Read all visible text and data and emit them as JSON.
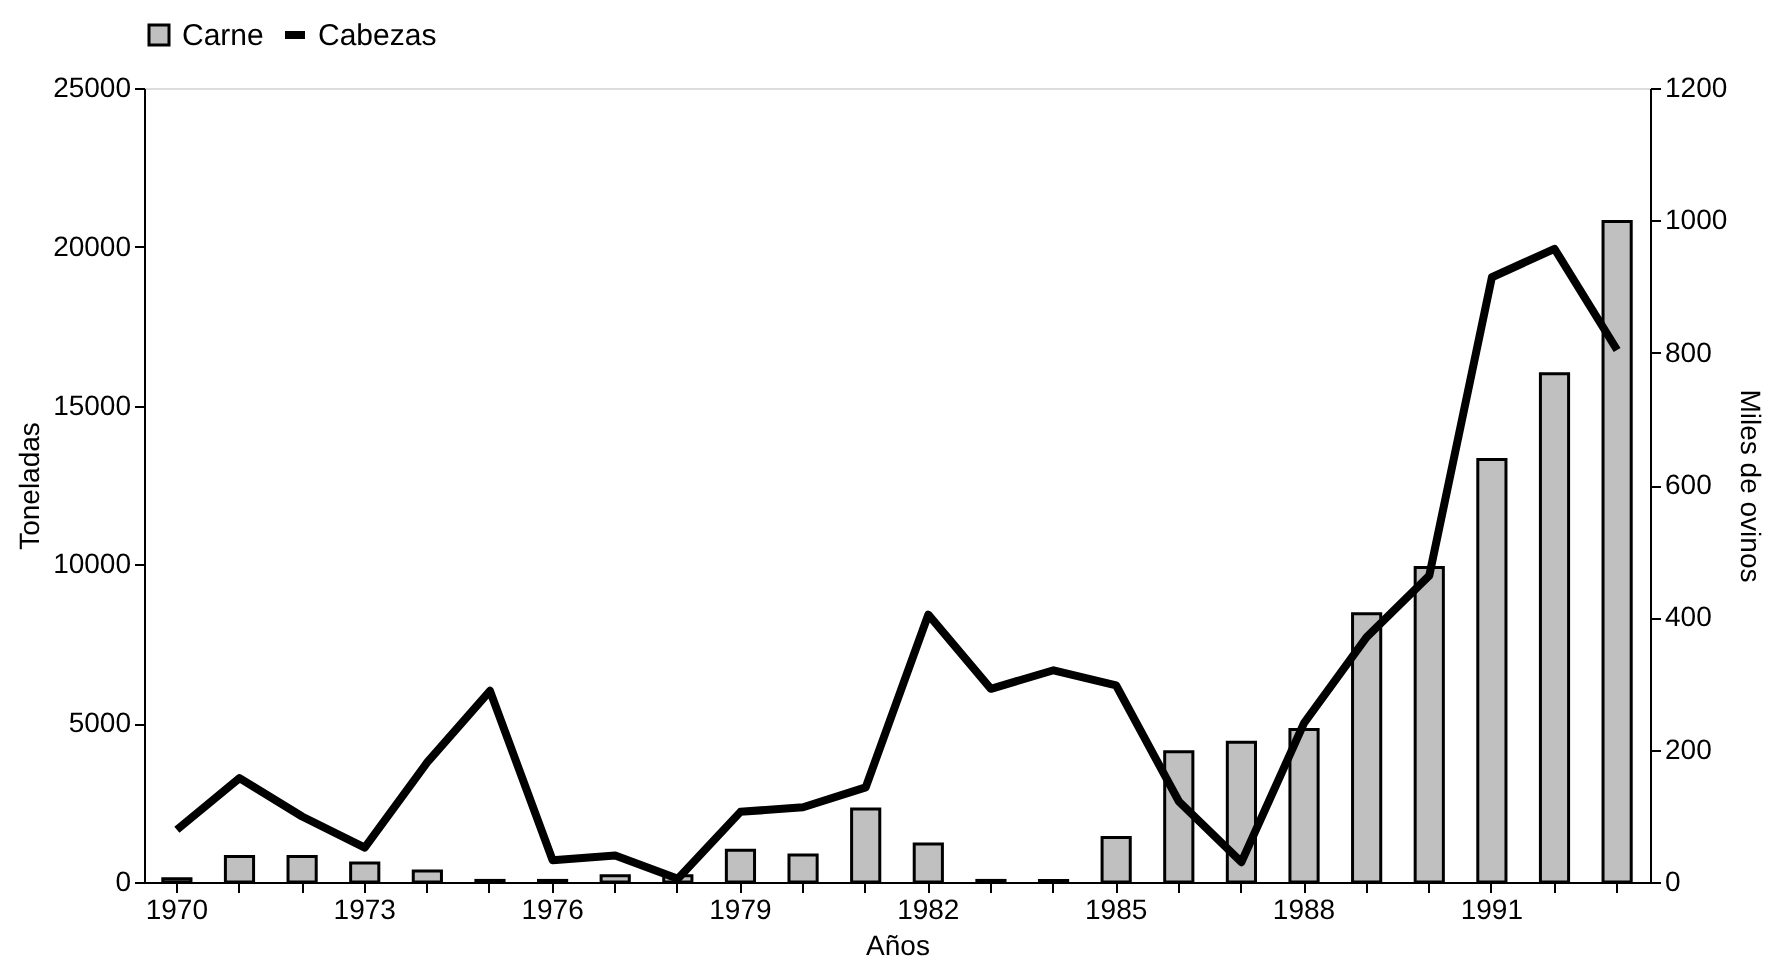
{
  "chart_data": {
    "type": "bar",
    "xlabel": "Años",
    "ylabel": "Toneladas",
    "y2label": "Miles de ovinos",
    "categories": [
      "1970",
      null,
      null,
      "1973",
      null,
      null,
      "1976",
      null,
      null,
      "1979",
      null,
      null,
      "1982",
      null,
      null,
      "1985",
      null,
      null,
      "1988",
      null,
      null,
      "1991",
      null,
      null
    ],
    "series": [
      {
        "name": "Carne",
        "color": "#c0c0c0",
        "values": [
          100,
          800,
          800,
          600,
          350,
          50,
          50,
          200,
          200,
          1000,
          850,
          2300,
          1200,
          50,
          50,
          1400,
          4100,
          4400,
          4800,
          8450,
          9900,
          13300,
          16000,
          20800
        ]
      },
      {
        "name": "Cabezas",
        "type": "line",
        "axis": "y2",
        "color": "#000000",
        "values": [
          79,
          157,
          99,
          52,
          181,
          289,
          33,
          40,
          5,
          106,
          113,
          143,
          404,
          292,
          320,
          297,
          122,
          30,
          240,
          370,
          463,
          914,
          957,
          804
        ]
      }
    ],
    "ylim": [
      0,
      25000
    ],
    "yticks": [
      0,
      5000,
      10000,
      15000,
      20000,
      25000
    ],
    "y2lim": [
      0,
      1200
    ],
    "y2ticks": [
      0,
      200,
      400,
      600,
      800,
      1000,
      1200
    ],
    "grid": false,
    "legend": "top",
    "line_style": "solid",
    "marker": "none"
  }
}
